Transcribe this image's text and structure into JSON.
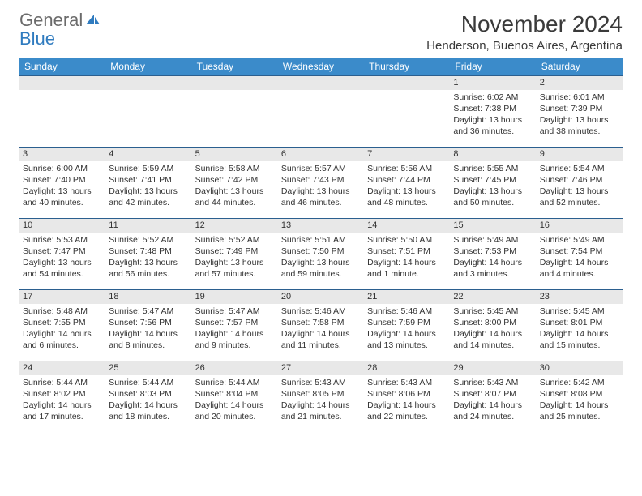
{
  "logo": {
    "word1": "General",
    "word2": "Blue"
  },
  "title": "November 2024",
  "location": "Henderson, Buenos Aires, Argentina",
  "colors": {
    "header_bg": "#3b8bca",
    "header_text": "#ffffff",
    "daynum_bg": "#e8e8e8",
    "daynum_border": "#2b5f8f",
    "text": "#333333",
    "logo_gray": "#6b6b6b",
    "logo_blue": "#2f7bbf",
    "page_bg": "#ffffff"
  },
  "weekdays": [
    "Sunday",
    "Monday",
    "Tuesday",
    "Wednesday",
    "Thursday",
    "Friday",
    "Saturday"
  ],
  "weeks": [
    [
      {
        "n": "",
        "sr": "",
        "ss": "",
        "dl": ""
      },
      {
        "n": "",
        "sr": "",
        "ss": "",
        "dl": ""
      },
      {
        "n": "",
        "sr": "",
        "ss": "",
        "dl": ""
      },
      {
        "n": "",
        "sr": "",
        "ss": "",
        "dl": ""
      },
      {
        "n": "",
        "sr": "",
        "ss": "",
        "dl": ""
      },
      {
        "n": "1",
        "sr": "Sunrise: 6:02 AM",
        "ss": "Sunset: 7:38 PM",
        "dl": "Daylight: 13 hours and 36 minutes."
      },
      {
        "n": "2",
        "sr": "Sunrise: 6:01 AM",
        "ss": "Sunset: 7:39 PM",
        "dl": "Daylight: 13 hours and 38 minutes."
      }
    ],
    [
      {
        "n": "3",
        "sr": "Sunrise: 6:00 AM",
        "ss": "Sunset: 7:40 PM",
        "dl": "Daylight: 13 hours and 40 minutes."
      },
      {
        "n": "4",
        "sr": "Sunrise: 5:59 AM",
        "ss": "Sunset: 7:41 PM",
        "dl": "Daylight: 13 hours and 42 minutes."
      },
      {
        "n": "5",
        "sr": "Sunrise: 5:58 AM",
        "ss": "Sunset: 7:42 PM",
        "dl": "Daylight: 13 hours and 44 minutes."
      },
      {
        "n": "6",
        "sr": "Sunrise: 5:57 AM",
        "ss": "Sunset: 7:43 PM",
        "dl": "Daylight: 13 hours and 46 minutes."
      },
      {
        "n": "7",
        "sr": "Sunrise: 5:56 AM",
        "ss": "Sunset: 7:44 PM",
        "dl": "Daylight: 13 hours and 48 minutes."
      },
      {
        "n": "8",
        "sr": "Sunrise: 5:55 AM",
        "ss": "Sunset: 7:45 PM",
        "dl": "Daylight: 13 hours and 50 minutes."
      },
      {
        "n": "9",
        "sr": "Sunrise: 5:54 AM",
        "ss": "Sunset: 7:46 PM",
        "dl": "Daylight: 13 hours and 52 minutes."
      }
    ],
    [
      {
        "n": "10",
        "sr": "Sunrise: 5:53 AM",
        "ss": "Sunset: 7:47 PM",
        "dl": "Daylight: 13 hours and 54 minutes."
      },
      {
        "n": "11",
        "sr": "Sunrise: 5:52 AM",
        "ss": "Sunset: 7:48 PM",
        "dl": "Daylight: 13 hours and 56 minutes."
      },
      {
        "n": "12",
        "sr": "Sunrise: 5:52 AM",
        "ss": "Sunset: 7:49 PM",
        "dl": "Daylight: 13 hours and 57 minutes."
      },
      {
        "n": "13",
        "sr": "Sunrise: 5:51 AM",
        "ss": "Sunset: 7:50 PM",
        "dl": "Daylight: 13 hours and 59 minutes."
      },
      {
        "n": "14",
        "sr": "Sunrise: 5:50 AM",
        "ss": "Sunset: 7:51 PM",
        "dl": "Daylight: 14 hours and 1 minute."
      },
      {
        "n": "15",
        "sr": "Sunrise: 5:49 AM",
        "ss": "Sunset: 7:53 PM",
        "dl": "Daylight: 14 hours and 3 minutes."
      },
      {
        "n": "16",
        "sr": "Sunrise: 5:49 AM",
        "ss": "Sunset: 7:54 PM",
        "dl": "Daylight: 14 hours and 4 minutes."
      }
    ],
    [
      {
        "n": "17",
        "sr": "Sunrise: 5:48 AM",
        "ss": "Sunset: 7:55 PM",
        "dl": "Daylight: 14 hours and 6 minutes."
      },
      {
        "n": "18",
        "sr": "Sunrise: 5:47 AM",
        "ss": "Sunset: 7:56 PM",
        "dl": "Daylight: 14 hours and 8 minutes."
      },
      {
        "n": "19",
        "sr": "Sunrise: 5:47 AM",
        "ss": "Sunset: 7:57 PM",
        "dl": "Daylight: 14 hours and 9 minutes."
      },
      {
        "n": "20",
        "sr": "Sunrise: 5:46 AM",
        "ss": "Sunset: 7:58 PM",
        "dl": "Daylight: 14 hours and 11 minutes."
      },
      {
        "n": "21",
        "sr": "Sunrise: 5:46 AM",
        "ss": "Sunset: 7:59 PM",
        "dl": "Daylight: 14 hours and 13 minutes."
      },
      {
        "n": "22",
        "sr": "Sunrise: 5:45 AM",
        "ss": "Sunset: 8:00 PM",
        "dl": "Daylight: 14 hours and 14 minutes."
      },
      {
        "n": "23",
        "sr": "Sunrise: 5:45 AM",
        "ss": "Sunset: 8:01 PM",
        "dl": "Daylight: 14 hours and 15 minutes."
      }
    ],
    [
      {
        "n": "24",
        "sr": "Sunrise: 5:44 AM",
        "ss": "Sunset: 8:02 PM",
        "dl": "Daylight: 14 hours and 17 minutes."
      },
      {
        "n": "25",
        "sr": "Sunrise: 5:44 AM",
        "ss": "Sunset: 8:03 PM",
        "dl": "Daylight: 14 hours and 18 minutes."
      },
      {
        "n": "26",
        "sr": "Sunrise: 5:44 AM",
        "ss": "Sunset: 8:04 PM",
        "dl": "Daylight: 14 hours and 20 minutes."
      },
      {
        "n": "27",
        "sr": "Sunrise: 5:43 AM",
        "ss": "Sunset: 8:05 PM",
        "dl": "Daylight: 14 hours and 21 minutes."
      },
      {
        "n": "28",
        "sr": "Sunrise: 5:43 AM",
        "ss": "Sunset: 8:06 PM",
        "dl": "Daylight: 14 hours and 22 minutes."
      },
      {
        "n": "29",
        "sr": "Sunrise: 5:43 AM",
        "ss": "Sunset: 8:07 PM",
        "dl": "Daylight: 14 hours and 24 minutes."
      },
      {
        "n": "30",
        "sr": "Sunrise: 5:42 AM",
        "ss": "Sunset: 8:08 PM",
        "dl": "Daylight: 14 hours and 25 minutes."
      }
    ]
  ]
}
